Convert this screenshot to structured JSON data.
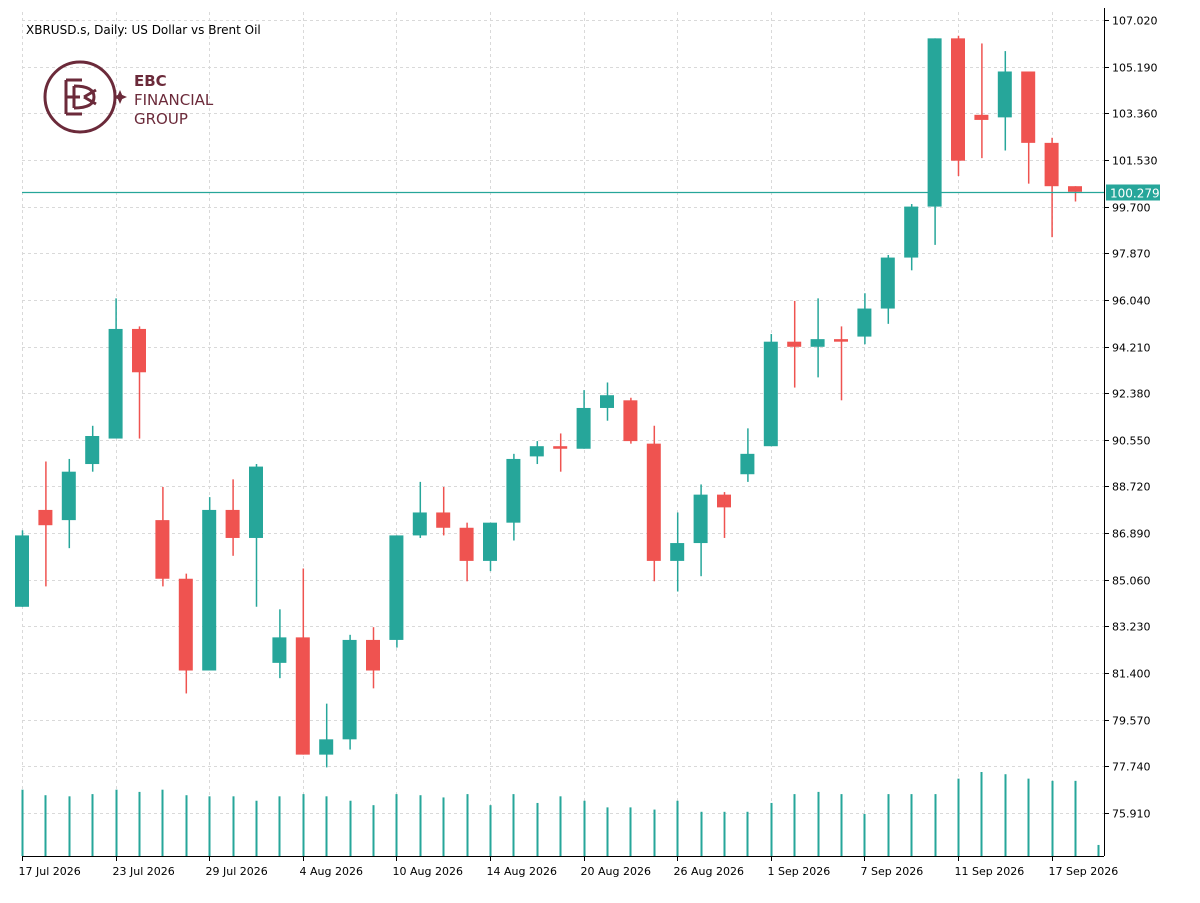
{
  "chart_title": "XBRUSD.s, Daily:  US Dollar vs Brent Oil",
  "logo": {
    "line1": "EBC",
    "line2": "FINANCIAL",
    "line3": "GROUP",
    "color": "#6b2a3a"
  },
  "colors": {
    "bull": "#26a69a",
    "bear": "#ef5350",
    "grid": "#d9d9d9",
    "price_line": "#26a69a",
    "volume": "#26a69a"
  },
  "current_price": {
    "label": "100.279",
    "value": 100.279
  },
  "chart_data": {
    "type": "candlestick",
    "title": "XBRUSD.s, Daily:  US Dollar vs Brent Oil",
    "y_ticks": [
      "107.020",
      "105.190",
      "103.360",
      "101.530",
      "99.700",
      "97.870",
      "96.040",
      "94.210",
      "92.380",
      "90.550",
      "88.720",
      "86.890",
      "85.060",
      "83.230",
      "81.400",
      "79.570",
      "77.740",
      "75.910"
    ],
    "ylim": [
      75.91,
      107.02
    ],
    "x_ticks": [
      "17 Jul 2026",
      "23 Jul 2026",
      "29 Jul 2026",
      "4 Aug 2026",
      "10 Aug 2026",
      "14 Aug 2026",
      "20 Aug 2026",
      "26 Aug 2026",
      "1 Sep 2026",
      "7 Sep 2026",
      "11 Sep 2026",
      "17 Sep 2026"
    ],
    "x_tick_bar_index": [
      0,
      4,
      8,
      12,
      16,
      20,
      24,
      28,
      32,
      36,
      40,
      44
    ],
    "grid": true,
    "candles": [
      {
        "o": 84.0,
        "h": 87.0,
        "l": 84.0,
        "c": 86.8
      },
      {
        "o": 87.8,
        "h": 89.7,
        "l": 84.8,
        "c": 87.2
      },
      {
        "o": 87.4,
        "h": 89.8,
        "l": 86.3,
        "c": 89.3
      },
      {
        "o": 89.6,
        "h": 91.1,
        "l": 89.3,
        "c": 90.7
      },
      {
        "o": 90.6,
        "h": 96.1,
        "l": 90.6,
        "c": 94.9
      },
      {
        "o": 94.9,
        "h": 95.0,
        "l": 90.6,
        "c": 93.2
      },
      {
        "o": 87.4,
        "h": 88.7,
        "l": 84.8,
        "c": 85.1
      },
      {
        "o": 85.1,
        "h": 85.3,
        "l": 80.6,
        "c": 81.5
      },
      {
        "o": 81.5,
        "h": 88.3,
        "l": 81.5,
        "c": 87.8
      },
      {
        "o": 87.8,
        "h": 89.0,
        "l": 86.0,
        "c": 86.7
      },
      {
        "o": 86.7,
        "h": 89.6,
        "l": 84.0,
        "c": 89.5
      },
      {
        "o": 81.8,
        "h": 83.9,
        "l": 81.2,
        "c": 82.8
      },
      {
        "o": 82.8,
        "h": 85.5,
        "l": 78.2,
        "c": 78.2
      },
      {
        "o": 78.2,
        "h": 80.2,
        "l": 77.7,
        "c": 78.8
      },
      {
        "o": 78.8,
        "h": 82.9,
        "l": 78.4,
        "c": 82.7
      },
      {
        "o": 82.7,
        "h": 83.2,
        "l": 80.8,
        "c": 81.5
      },
      {
        "o": 82.7,
        "h": 86.8,
        "l": 82.4,
        "c": 86.8
      },
      {
        "o": 86.8,
        "h": 88.9,
        "l": 86.7,
        "c": 87.7
      },
      {
        "o": 87.7,
        "h": 88.7,
        "l": 86.8,
        "c": 87.1
      },
      {
        "o": 87.1,
        "h": 87.3,
        "l": 85.0,
        "c": 85.8
      },
      {
        "o": 85.8,
        "h": 87.3,
        "l": 85.4,
        "c": 87.3
      },
      {
        "o": 87.3,
        "h": 90.0,
        "l": 86.6,
        "c": 89.8
      },
      {
        "o": 89.9,
        "h": 90.5,
        "l": 89.6,
        "c": 90.3
      },
      {
        "o": 90.3,
        "h": 90.8,
        "l": 89.3,
        "c": 90.2
      },
      {
        "o": 90.2,
        "h": 92.5,
        "l": 90.2,
        "c": 91.8
      },
      {
        "o": 91.8,
        "h": 92.8,
        "l": 91.3,
        "c": 92.3
      },
      {
        "o": 92.1,
        "h": 92.2,
        "l": 90.4,
        "c": 90.5
      },
      {
        "o": 90.4,
        "h": 91.1,
        "l": 85.0,
        "c": 85.8
      },
      {
        "o": 85.8,
        "h": 87.7,
        "l": 84.6,
        "c": 86.5
      },
      {
        "o": 86.5,
        "h": 88.8,
        "l": 85.2,
        "c": 88.4
      },
      {
        "o": 88.4,
        "h": 88.5,
        "l": 86.7,
        "c": 87.9
      },
      {
        "o": 89.2,
        "h": 91.0,
        "l": 88.9,
        "c": 90.0
      },
      {
        "o": 90.3,
        "h": 94.7,
        "l": 90.3,
        "c": 94.4
      },
      {
        "o": 94.4,
        "h": 96.0,
        "l": 92.6,
        "c": 94.2
      },
      {
        "o": 94.2,
        "h": 96.1,
        "l": 93.0,
        "c": 94.5
      },
      {
        "o": 94.5,
        "h": 95.0,
        "l": 92.1,
        "c": 94.4
      },
      {
        "o": 94.6,
        "h": 96.3,
        "l": 94.3,
        "c": 95.7
      },
      {
        "o": 95.7,
        "h": 97.8,
        "l": 95.1,
        "c": 97.7
      },
      {
        "o": 97.7,
        "h": 99.8,
        "l": 97.2,
        "c": 99.7
      },
      {
        "o": 99.7,
        "h": 106.3,
        "l": 98.2,
        "c": 106.3
      },
      {
        "o": 106.3,
        "h": 106.4,
        "l": 100.9,
        "c": 101.5
      },
      {
        "o": 103.3,
        "h": 106.1,
        "l": 101.6,
        "c": 103.1
      },
      {
        "o": 103.2,
        "h": 105.8,
        "l": 101.9,
        "c": 105.0
      },
      {
        "o": 105.0,
        "h": 105.0,
        "l": 100.6,
        "c": 102.2
      },
      {
        "o": 102.2,
        "h": 102.4,
        "l": 98.5,
        "c": 100.5
      },
      {
        "o": 100.5,
        "h": 100.5,
        "l": 99.9,
        "c": 100.28
      }
    ],
    "volume": [
      60,
      55,
      54,
      56,
      60,
      58,
      60,
      55,
      54,
      54,
      50,
      54,
      56,
      54,
      50,
      46,
      56,
      55,
      53,
      56,
      46,
      56,
      48,
      54,
      50,
      44,
      44,
      42,
      50,
      40,
      40,
      40,
      48,
      56,
      58,
      56,
      38,
      56,
      56,
      56,
      70,
      76,
      74,
      70,
      68,
      68,
      10
    ]
  }
}
